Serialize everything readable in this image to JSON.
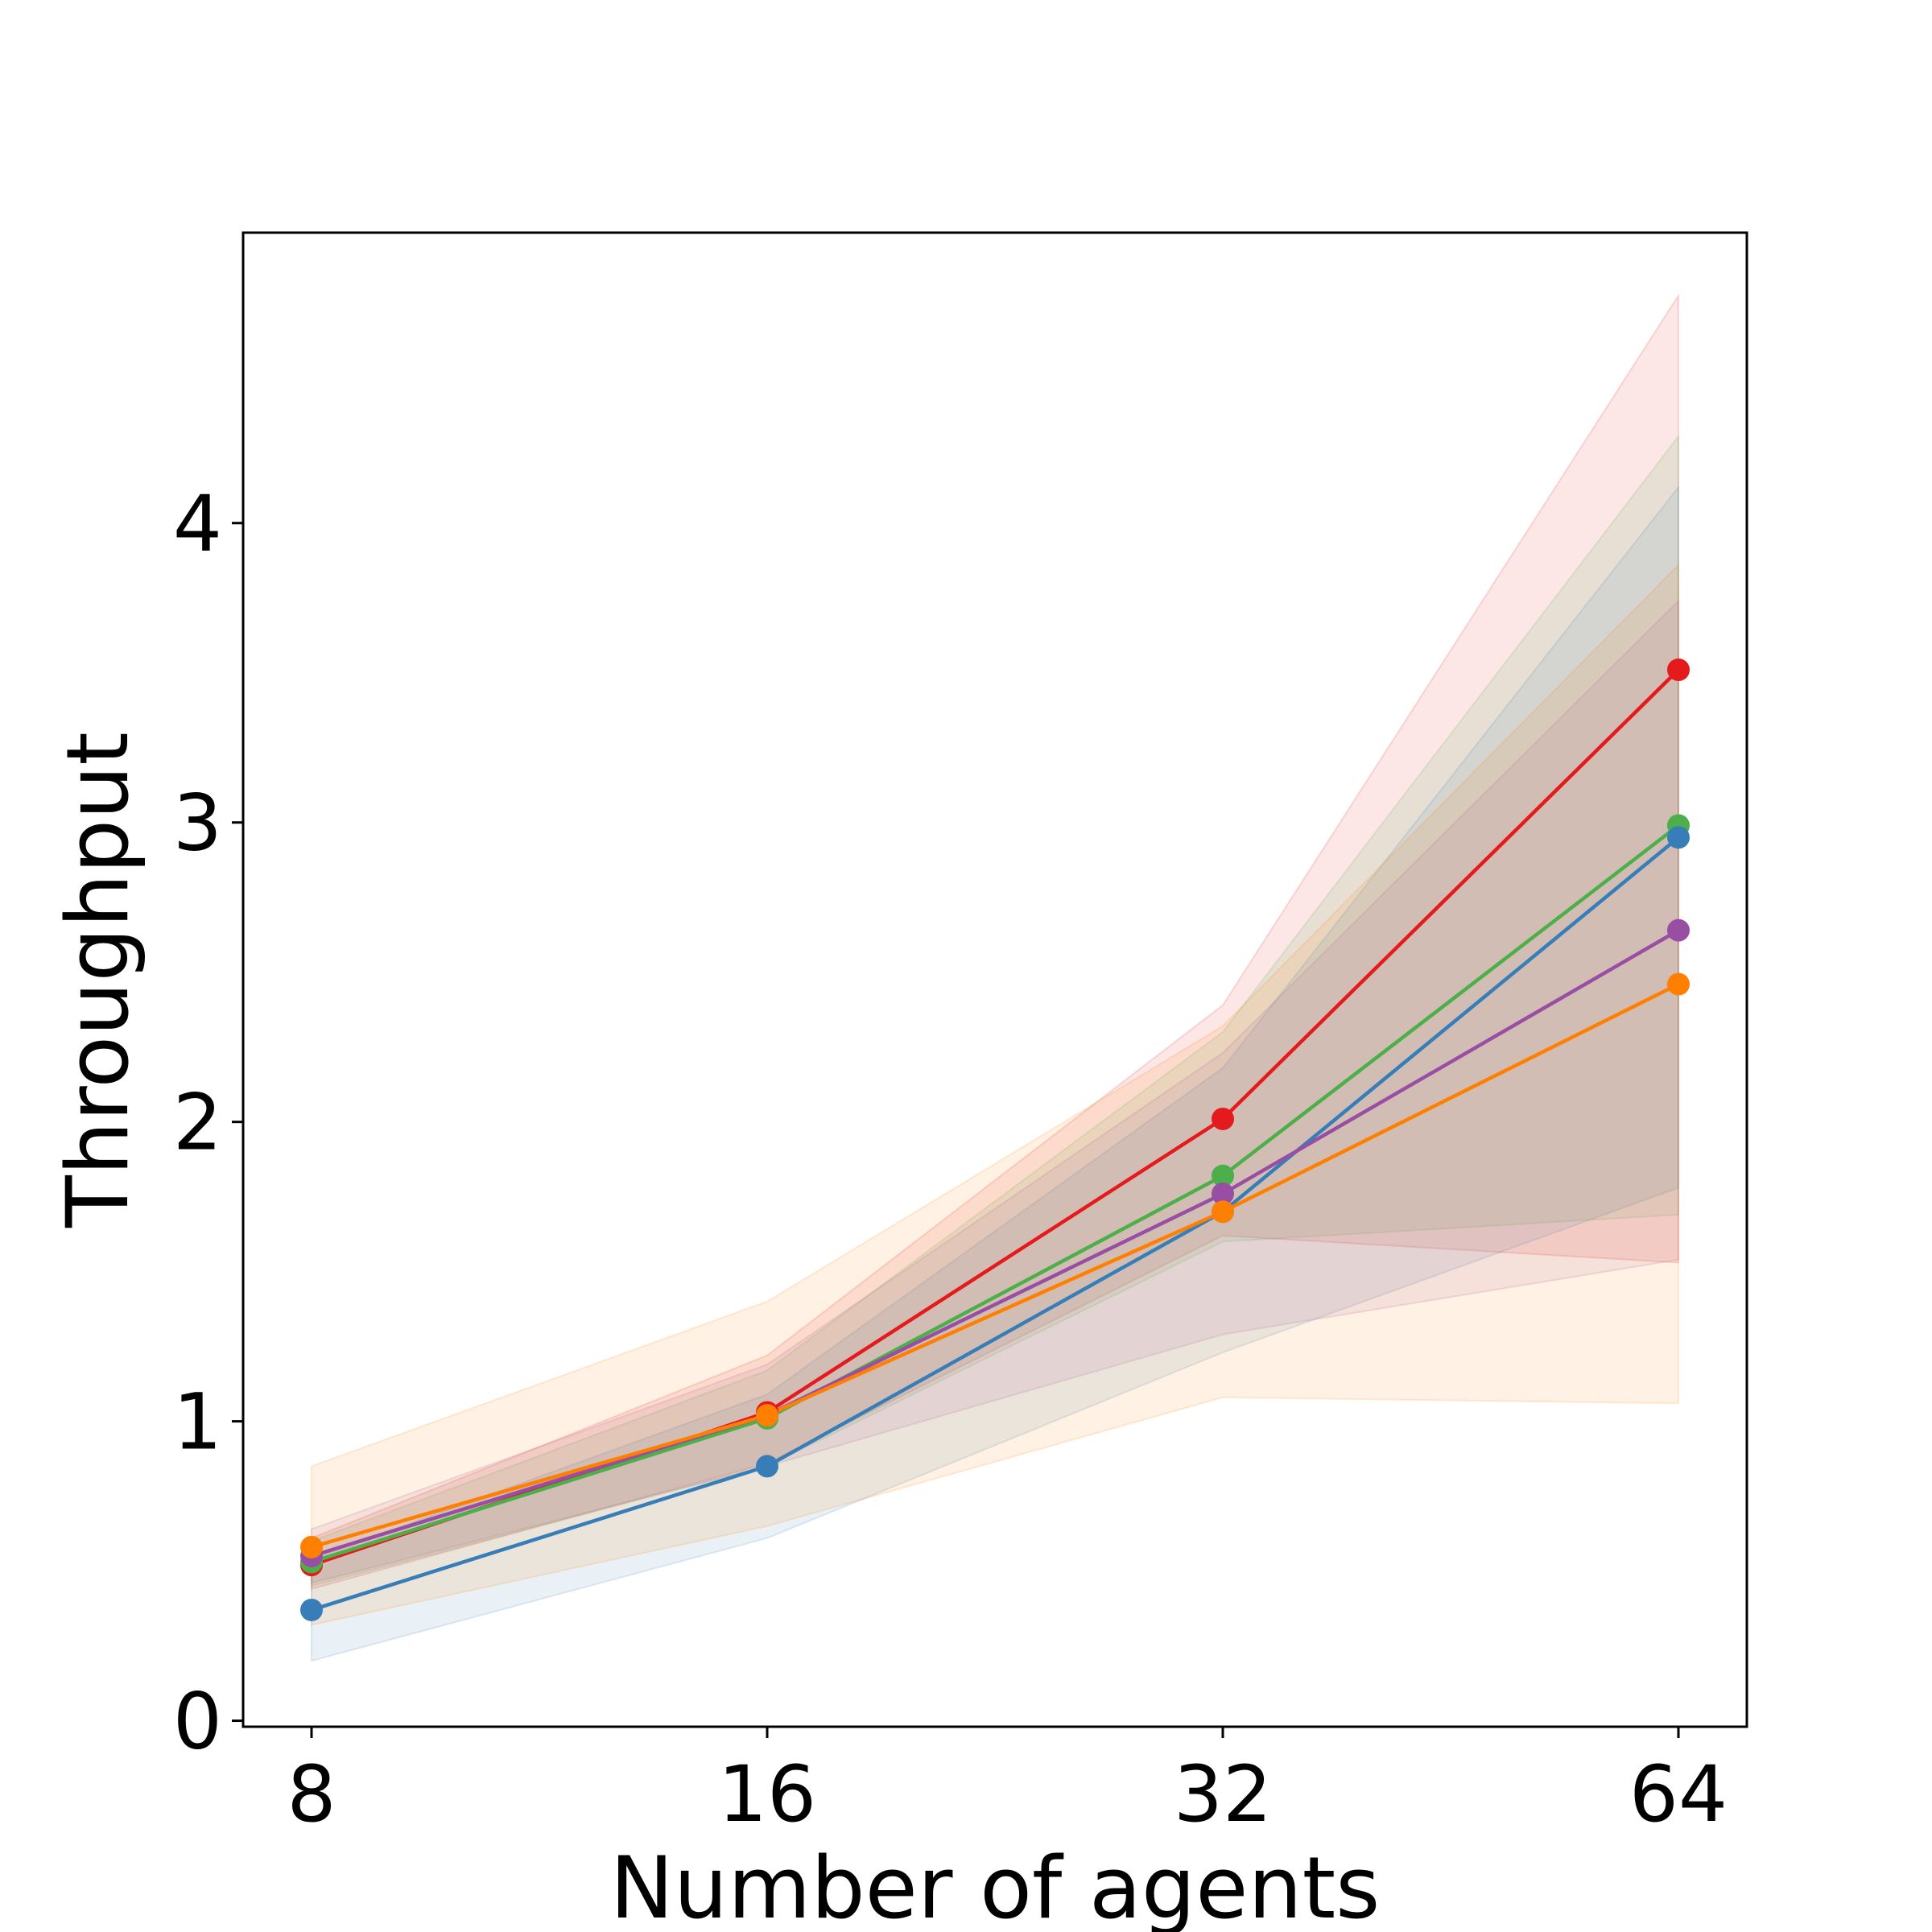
{
  "chart_data": {
    "type": "line",
    "title": "",
    "xlabel": "Number of agents",
    "ylabel": "Throughput",
    "categories": [
      "8",
      "16",
      "32",
      "64"
    ],
    "x_scale": "log2",
    "ylim": [
      -0.02,
      4.97
    ],
    "yticks": [
      0,
      1,
      2,
      3,
      4
    ],
    "grid": false,
    "legend": "none",
    "series": [
      {
        "color": "#e41a1c",
        "values": [
          0.52,
          1.03,
          2.01,
          3.51
        ],
        "lower": [
          0.44,
          0.86,
          1.62,
          1.53
        ],
        "upper": [
          0.61,
          1.22,
          2.39,
          4.76
        ]
      },
      {
        "color": "#4daf4a",
        "values": [
          0.53,
          1.01,
          1.82,
          2.99
        ],
        "lower": [
          0.45,
          0.85,
          1.6,
          1.69
        ],
        "upper": [
          0.6,
          1.17,
          2.3,
          4.29
        ]
      },
      {
        "color": "#377eb8",
        "values": [
          0.37,
          0.85,
          1.7,
          2.95
        ],
        "lower": [
          0.2,
          0.61,
          1.23,
          1.78
        ],
        "upper": [
          0.54,
          1.09,
          2.18,
          4.12
        ]
      },
      {
        "color": "#984ea3",
        "values": [
          0.55,
          1.02,
          1.76,
          2.64
        ],
        "lower": [
          0.46,
          0.85,
          1.29,
          1.54
        ],
        "upper": [
          0.64,
          1.19,
          2.23,
          3.74
        ]
      },
      {
        "color": "#ff7f00",
        "values": [
          0.58,
          1.02,
          1.7,
          2.46
        ],
        "lower": [
          0.32,
          0.65,
          1.08,
          1.06
        ],
        "upper": [
          0.85,
          1.4,
          2.32,
          3.86
        ]
      }
    ]
  }
}
